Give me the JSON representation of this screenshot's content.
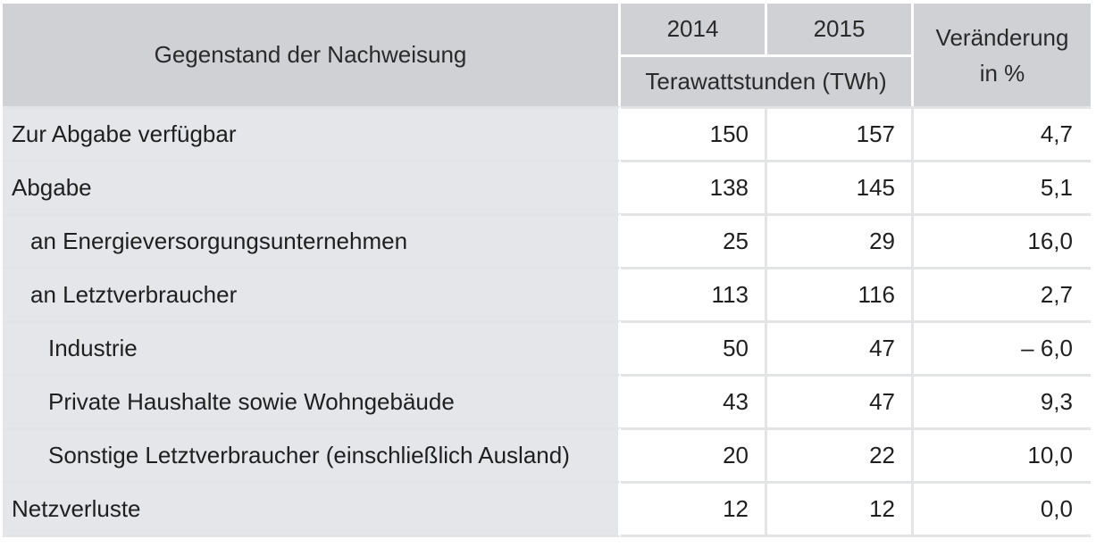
{
  "header": {
    "subject": "Gegenstand der Nachweisung",
    "year_1": "2014",
    "year_2": "2015",
    "unit": "Terawattstunden (TWh)",
    "change_line1": "Veränderung",
    "change_line2": "in %"
  },
  "rows": [
    {
      "label": "Zur Abgabe verfügbar",
      "y2014": "150",
      "y2015": "157",
      "change": "4,7"
    },
    {
      "label": "Abgabe",
      "y2014": "138",
      "y2015": "145",
      "change": "5,1"
    },
    {
      "label": "an Energieversorgungsunternehmen",
      "y2014": "25",
      "y2015": "29",
      "change": "16,0"
    },
    {
      "label": "an Letztverbraucher",
      "y2014": "113",
      "y2015": "116",
      "change": "2,7"
    },
    {
      "label": "Industrie",
      "y2014": "50",
      "y2015": "47",
      "change": "– 6,0"
    },
    {
      "label": "Private Haushalte sowie Wohngebäude",
      "y2014": "43",
      "y2015": "47",
      "change": "9,3"
    },
    {
      "label": "Sonstige Letztverbraucher (einschließlich Ausland)",
      "y2014": "20",
      "y2015": "22",
      "change": "10,0"
    },
    {
      "label": "Netzverluste",
      "y2014": "12",
      "y2015": "12",
      "change": "0,0"
    }
  ]
}
